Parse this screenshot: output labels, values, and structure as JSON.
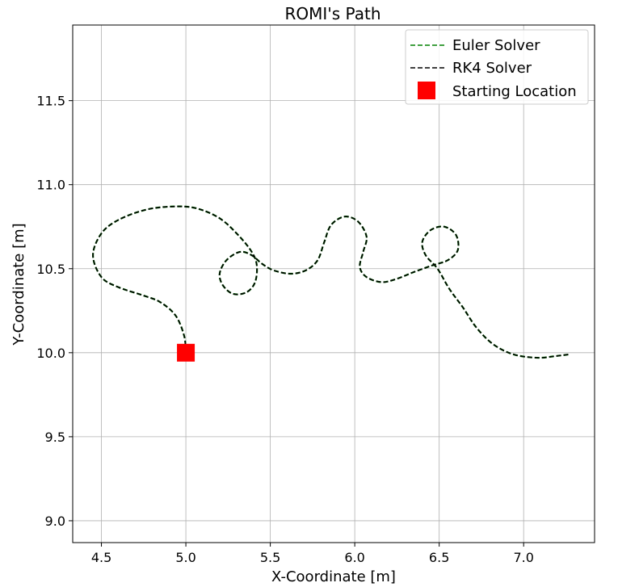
{
  "chart_data": {
    "type": "line",
    "title": "ROMI's Path",
    "xlabel": "X-Coordinate [m]",
    "ylabel": "Y-Coordinate [m]",
    "xlim": [
      4.33,
      7.42
    ],
    "ylim": [
      8.87,
      11.95
    ],
    "xticks": [
      "4.5",
      "5.0",
      "5.5",
      "6.0",
      "6.5",
      "7.0"
    ],
    "yticks": [
      "9.0",
      "9.5",
      "10.0",
      "10.5",
      "11.0",
      "11.5"
    ],
    "grid": true,
    "legend_position": "top-right",
    "series": [
      {
        "name": "Euler Solver",
        "color": "#008000",
        "style": "dashed",
        "points": [
          [
            5.0,
            10.0
          ],
          [
            4.99,
            10.1
          ],
          [
            4.94,
            10.22
          ],
          [
            4.85,
            10.3
          ],
          [
            4.75,
            10.34
          ],
          [
            4.6,
            10.39
          ],
          [
            4.5,
            10.45
          ],
          [
            4.45,
            10.58
          ],
          [
            4.5,
            10.71
          ],
          [
            4.6,
            10.79
          ],
          [
            4.76,
            10.85
          ],
          [
            4.92,
            10.87
          ],
          [
            5.06,
            10.86
          ],
          [
            5.2,
            10.8
          ],
          [
            5.31,
            10.7
          ],
          [
            5.39,
            10.6
          ],
          [
            5.42,
            10.52
          ],
          [
            5.41,
            10.42
          ],
          [
            5.36,
            10.36
          ],
          [
            5.28,
            10.35
          ],
          [
            5.22,
            10.4
          ],
          [
            5.2,
            10.47
          ],
          [
            5.24,
            10.55
          ],
          [
            5.32,
            10.6
          ],
          [
            5.39,
            10.58
          ],
          [
            5.45,
            10.53
          ],
          [
            5.52,
            10.49
          ],
          [
            5.62,
            10.47
          ],
          [
            5.71,
            10.49
          ],
          [
            5.78,
            10.55
          ],
          [
            5.82,
            10.66
          ],
          [
            5.86,
            10.76
          ],
          [
            5.94,
            10.81
          ],
          [
            6.02,
            10.78
          ],
          [
            6.07,
            10.69
          ],
          [
            6.05,
            10.6
          ],
          [
            6.03,
            10.51
          ],
          [
            6.07,
            10.45
          ],
          [
            6.16,
            10.42
          ],
          [
            6.25,
            10.44
          ],
          [
            6.35,
            10.48
          ],
          [
            6.46,
            10.52
          ],
          [
            6.55,
            10.55
          ],
          [
            6.61,
            10.61
          ],
          [
            6.6,
            10.7
          ],
          [
            6.53,
            10.75
          ],
          [
            6.45,
            10.73
          ],
          [
            6.4,
            10.66
          ],
          [
            6.42,
            10.58
          ],
          [
            6.49,
            10.5
          ],
          [
            6.56,
            10.38
          ],
          [
            6.64,
            10.27
          ],
          [
            6.72,
            10.15
          ],
          [
            6.82,
            10.05
          ],
          [
            6.94,
            9.99
          ],
          [
            7.08,
            9.97
          ],
          [
            7.19,
            9.98
          ],
          [
            7.27,
            9.99
          ]
        ]
      },
      {
        "name": "RK4 Solver",
        "color": "#000000",
        "style": "dashed",
        "points": [
          [
            5.0,
            10.0
          ],
          [
            4.99,
            10.1
          ],
          [
            4.94,
            10.22
          ],
          [
            4.85,
            10.3
          ],
          [
            4.75,
            10.34
          ],
          [
            4.6,
            10.39
          ],
          [
            4.5,
            10.45
          ],
          [
            4.45,
            10.58
          ],
          [
            4.5,
            10.71
          ],
          [
            4.6,
            10.79
          ],
          [
            4.76,
            10.85
          ],
          [
            4.92,
            10.87
          ],
          [
            5.06,
            10.86
          ],
          [
            5.2,
            10.8
          ],
          [
            5.31,
            10.7
          ],
          [
            5.39,
            10.6
          ],
          [
            5.42,
            10.52
          ],
          [
            5.41,
            10.42
          ],
          [
            5.36,
            10.36
          ],
          [
            5.28,
            10.35
          ],
          [
            5.22,
            10.4
          ],
          [
            5.2,
            10.47
          ],
          [
            5.24,
            10.55
          ],
          [
            5.32,
            10.6
          ],
          [
            5.39,
            10.58
          ],
          [
            5.45,
            10.53
          ],
          [
            5.52,
            10.49
          ],
          [
            5.62,
            10.47
          ],
          [
            5.71,
            10.49
          ],
          [
            5.78,
            10.55
          ],
          [
            5.82,
            10.66
          ],
          [
            5.86,
            10.76
          ],
          [
            5.94,
            10.81
          ],
          [
            6.02,
            10.78
          ],
          [
            6.07,
            10.69
          ],
          [
            6.05,
            10.6
          ],
          [
            6.03,
            10.51
          ],
          [
            6.07,
            10.45
          ],
          [
            6.16,
            10.42
          ],
          [
            6.25,
            10.44
          ],
          [
            6.35,
            10.48
          ],
          [
            6.46,
            10.52
          ],
          [
            6.55,
            10.55
          ],
          [
            6.61,
            10.61
          ],
          [
            6.6,
            10.7
          ],
          [
            6.53,
            10.75
          ],
          [
            6.45,
            10.73
          ],
          [
            6.4,
            10.66
          ],
          [
            6.42,
            10.58
          ],
          [
            6.49,
            10.5
          ],
          [
            6.56,
            10.38
          ],
          [
            6.64,
            10.27
          ],
          [
            6.72,
            10.15
          ],
          [
            6.82,
            10.05
          ],
          [
            6.94,
            9.99
          ],
          [
            7.08,
            9.97
          ],
          [
            7.19,
            9.98
          ],
          [
            7.27,
            9.99
          ]
        ]
      },
      {
        "name": "Starting Location",
        "color": "#ff0000",
        "marker": "square",
        "points": [
          [
            5.0,
            10.0
          ]
        ]
      }
    ]
  }
}
